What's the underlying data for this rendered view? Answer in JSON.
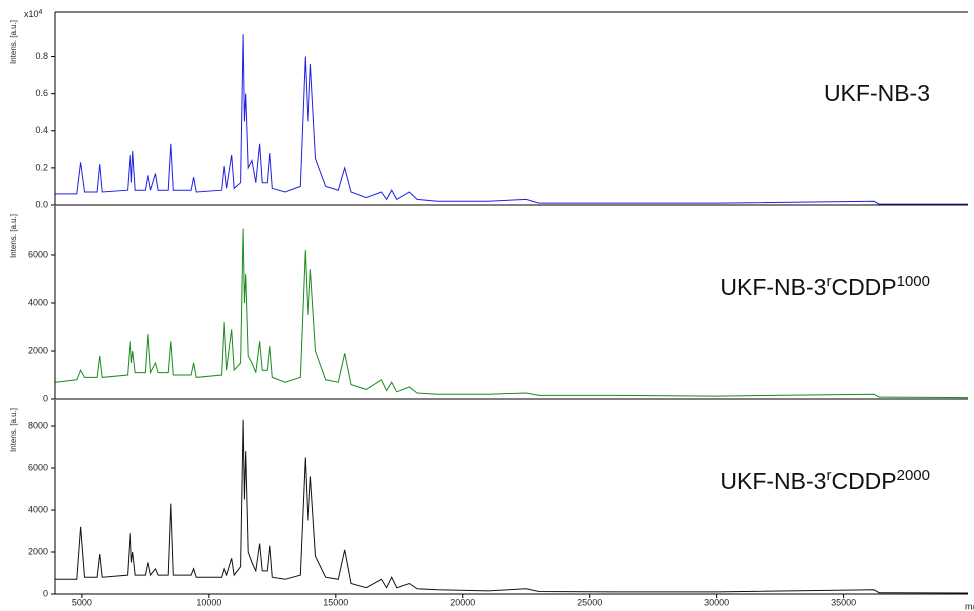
{
  "chart_data": [
    {
      "type": "line",
      "ylabel": "Intens. [a.u.]",
      "ylabel_multiplier": {
        "base": "x10",
        "exponent": "4"
      },
      "annotation": [
        "UKF-NB-3"
      ],
      "xlim": [
        3940,
        39900
      ],
      "ylim": [
        0,
        1.04
      ],
      "yticks": [
        {
          "value": 0,
          "label": "0.0"
        },
        0.2,
        0.4,
        0.6,
        0.8
      ],
      "series": [
        {
          "color": "#1f1fe0",
          "x": [
            3950,
            4800,
            4950,
            5100,
            5600,
            5700,
            5800,
            6800,
            6900,
            6950,
            7000,
            7100,
            7500,
            7600,
            7700,
            7900,
            8000,
            8400,
            8500,
            8600,
            9300,
            9400,
            9500,
            10500,
            10600,
            10700,
            10900,
            11000,
            11250,
            11350,
            11400,
            11450,
            11550,
            11700,
            11850,
            12000,
            12100,
            12300,
            12400,
            12500,
            13000,
            13600,
            13800,
            13900,
            14000,
            14200,
            14600,
            15100,
            15350,
            15600,
            16200,
            16800,
            17000,
            17200,
            17400,
            17900,
            18200,
            19000,
            21000,
            22500,
            23000,
            26000,
            30000,
            36200,
            36400,
            39900
          ],
          "values": [
            0.06,
            0.06,
            0.23,
            0.07,
            0.07,
            0.22,
            0.07,
            0.08,
            0.27,
            0.12,
            0.29,
            0.08,
            0.08,
            0.16,
            0.08,
            0.17,
            0.08,
            0.08,
            0.33,
            0.08,
            0.08,
            0.15,
            0.07,
            0.08,
            0.21,
            0.09,
            0.27,
            0.09,
            0.12,
            0.92,
            0.45,
            0.6,
            0.2,
            0.24,
            0.12,
            0.33,
            0.12,
            0.12,
            0.28,
            0.09,
            0.07,
            0.1,
            0.8,
            0.45,
            0.76,
            0.25,
            0.1,
            0.08,
            0.2,
            0.07,
            0.04,
            0.07,
            0.03,
            0.08,
            0.03,
            0.07,
            0.03,
            0.02,
            0.02,
            0.03,
            0.01,
            0.01,
            0.01,
            0.02,
            0.005,
            0.005
          ]
        }
      ]
    },
    {
      "type": "line",
      "ylabel": "Intens. [a.u.]",
      "annotation": [
        "UKF-NB-3",
        "r",
        "CDDP",
        "1000"
      ],
      "xlim": [
        3940,
        39900
      ],
      "ylim": [
        0,
        8040
      ],
      "yticks": [
        0,
        2000,
        4000,
        6000
      ],
      "series": [
        {
          "color": "#1a8a1a",
          "x": [
            3950,
            4800,
            4950,
            5100,
            5600,
            5700,
            5800,
            6800,
            6900,
            6950,
            7000,
            7100,
            7500,
            7600,
            7700,
            7900,
            8000,
            8400,
            8500,
            8600,
            9300,
            9400,
            9500,
            10500,
            10600,
            10700,
            10900,
            11000,
            11250,
            11350,
            11400,
            11450,
            11550,
            11700,
            11850,
            12000,
            12100,
            12300,
            12400,
            12500,
            13000,
            13600,
            13800,
            13900,
            14000,
            14200,
            14600,
            15100,
            15350,
            15600,
            16200,
            16800,
            17000,
            17200,
            17400,
            17900,
            18200,
            19000,
            21000,
            22500,
            23000,
            26000,
            30000,
            36200,
            36400,
            39900
          ],
          "values": [
            700,
            800,
            1200,
            900,
            900,
            1800,
            900,
            1000,
            2400,
            1500,
            2000,
            1100,
            1100,
            2700,
            1100,
            1500,
            1100,
            1100,
            2400,
            1000,
            1000,
            1500,
            900,
            1000,
            3200,
            1200,
            2900,
            1200,
            1500,
            7100,
            4000,
            5200,
            1800,
            1500,
            1100,
            2400,
            1200,
            1200,
            2200,
            900,
            700,
            900,
            6200,
            3500,
            5400,
            2000,
            800,
            700,
            1900,
            600,
            400,
            800,
            350,
            700,
            300,
            500,
            250,
            200,
            200,
            250,
            150,
            150,
            120,
            200,
            80,
            60
          ]
        }
      ]
    },
    {
      "type": "line",
      "ylabel": "Intens. [a.u.]",
      "xlabel": "m/z",
      "annotation": [
        "UKF-NB-3",
        "r",
        "CDDP",
        "2000"
      ],
      "xlim": [
        3940,
        39900
      ],
      "ylim": [
        0,
        9240
      ],
      "xticks": [
        5000,
        10000,
        15000,
        20000,
        25000,
        30000,
        35000
      ],
      "yticks": [
        0,
        2000,
        4000,
        6000,
        8000
      ],
      "series": [
        {
          "color": "#111111",
          "x": [
            3950,
            4800,
            4950,
            5100,
            5600,
            5700,
            5800,
            6800,
            6900,
            6950,
            7000,
            7100,
            7500,
            7600,
            7700,
            7900,
            8000,
            8400,
            8500,
            8600,
            9300,
            9400,
            9500,
            10500,
            10600,
            10700,
            10900,
            11000,
            11250,
            11350,
            11400,
            11450,
            11550,
            11700,
            11850,
            12000,
            12100,
            12300,
            12400,
            12500,
            13000,
            13600,
            13800,
            13900,
            14000,
            14200,
            14600,
            15100,
            15350,
            15600,
            16200,
            16800,
            17000,
            17200,
            17400,
            17900,
            18200,
            19000,
            21000,
            22500,
            23000,
            26000,
            30000,
            36200,
            36400,
            39900
          ],
          "values": [
            700,
            700,
            3200,
            800,
            800,
            1900,
            800,
            900,
            2900,
            1500,
            2000,
            900,
            900,
            1500,
            900,
            1200,
            900,
            900,
            4300,
            900,
            900,
            1200,
            800,
            800,
            1200,
            900,
            1700,
            900,
            1300,
            8300,
            4500,
            6800,
            2000,
            1500,
            1100,
            2400,
            1100,
            1100,
            2300,
            800,
            700,
            900,
            6500,
            3500,
            5600,
            1800,
            800,
            700,
            2100,
            500,
            300,
            700,
            300,
            800,
            300,
            500,
            250,
            200,
            150,
            250,
            120,
            100,
            100,
            200,
            60,
            50
          ]
        }
      ]
    }
  ]
}
